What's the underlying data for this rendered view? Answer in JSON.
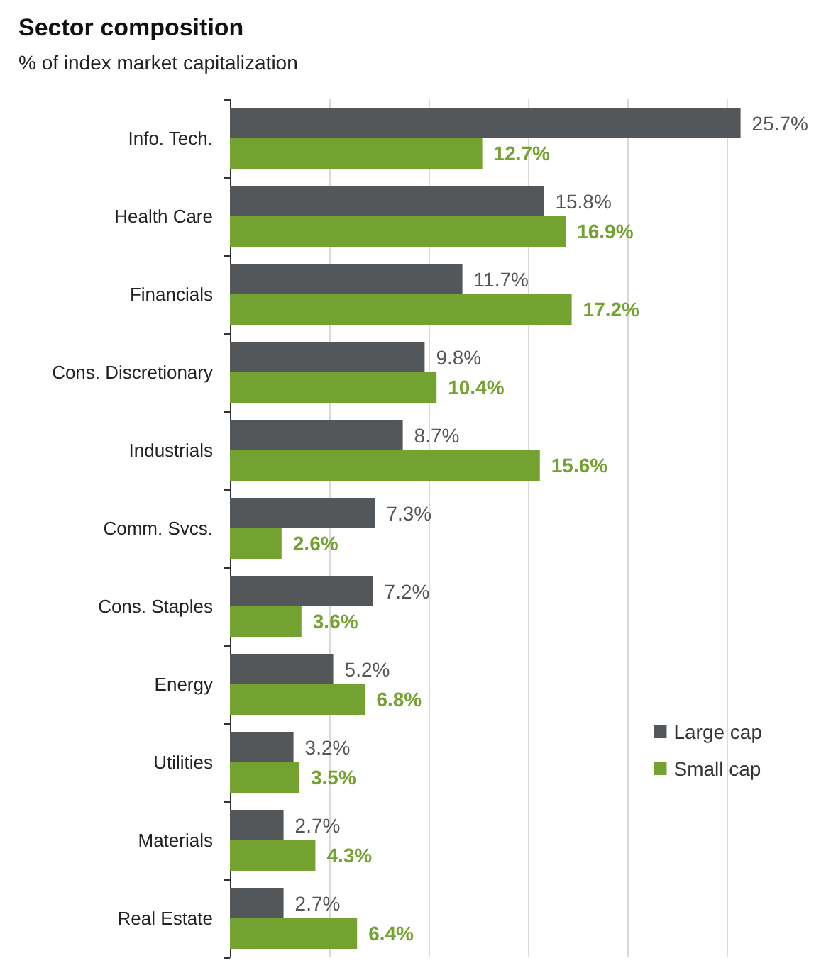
{
  "chart_data": {
    "type": "bar",
    "orientation": "horizontal",
    "title": "Sector composition",
    "subtitle": "% of index market capitalization",
    "categories": [
      "Info. Tech.",
      "Health Care",
      "Financials",
      "Cons. Discretionary",
      "Industrials",
      "Comm. Svcs.",
      "Cons. Staples",
      "Energy",
      "Utilities",
      "Materials",
      "Real Estate"
    ],
    "series": [
      {
        "name": "Large cap",
        "color": "#54575a",
        "values": [
          25.7,
          15.8,
          11.7,
          9.8,
          8.7,
          7.3,
          7.2,
          5.2,
          3.2,
          2.7,
          2.7
        ],
        "value_labels": [
          "25.7%",
          "15.8%",
          "11.7%",
          "9.8%",
          "8.7%",
          "7.3%",
          "7.2%",
          "5.2%",
          "3.2%",
          "2.7%",
          "2.7%"
        ]
      },
      {
        "name": "Small cap",
        "color": "#74a230",
        "values": [
          12.7,
          16.9,
          17.2,
          10.4,
          15.6,
          2.6,
          3.6,
          6.8,
          3.5,
          4.3,
          6.4
        ],
        "value_labels": [
          "12.7%",
          "16.9%",
          "17.2%",
          "10.4%",
          "15.6%",
          "2.6%",
          "3.6%",
          "6.8%",
          "3.5%",
          "4.3%",
          "6.4%"
        ]
      }
    ],
    "grid": "x",
    "legend": "bottom right",
    "tick_labels": "y"
  }
}
